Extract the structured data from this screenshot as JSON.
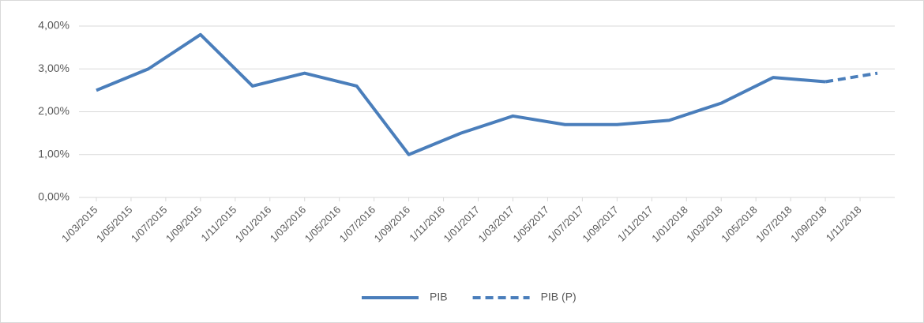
{
  "chart_data": {
    "type": "line",
    "x": [
      "1/03/2015",
      "1/06/2015",
      "1/09/2015",
      "1/12/2015",
      "1/03/2016",
      "1/06/2016",
      "1/09/2016",
      "1/12/2016",
      "1/03/2017",
      "1/06/2017",
      "1/09/2017",
      "1/12/2017",
      "1/03/2018",
      "1/06/2018",
      "1/09/2018",
      "1/12/2018"
    ],
    "series": [
      {
        "name": "PIB",
        "color": "#4a7ebb",
        "dash": false,
        "values": [
          2.5,
          3.0,
          3.8,
          2.6,
          2.9,
          2.6,
          1.0,
          1.5,
          1.9,
          1.7,
          1.7,
          1.8,
          2.2,
          2.8,
          2.7,
          null
        ]
      },
      {
        "name": "PIB (P)",
        "color": "#4a7ebb",
        "dash": true,
        "values": [
          null,
          null,
          null,
          null,
          null,
          null,
          null,
          null,
          null,
          null,
          null,
          null,
          null,
          null,
          2.7,
          2.9
        ]
      }
    ],
    "xlim": [
      "1/02/2015",
      "1/01/2019"
    ],
    "xticks": [
      "1/03/2015",
      "1/05/2015",
      "1/07/2015",
      "1/09/2015",
      "1/11/2015",
      "1/01/2016",
      "1/03/2016",
      "1/05/2016",
      "1/07/2016",
      "1/09/2016",
      "1/11/2016",
      "1/01/2017",
      "1/03/2017",
      "1/05/2017",
      "1/07/2017",
      "1/09/2017",
      "1/11/2017",
      "1/01/2018",
      "1/03/2018",
      "1/05/2018",
      "1/07/2018",
      "1/09/2018",
      "1/11/2018"
    ],
    "ylim": [
      0,
      4
    ],
    "yticks": [
      {
        "value": 0,
        "label": "0,00%"
      },
      {
        "value": 1,
        "label": "1,00%"
      },
      {
        "value": 2,
        "label": "2,00%"
      },
      {
        "value": 3,
        "label": "3,00%"
      },
      {
        "value": 4,
        "label": "4,00%"
      }
    ],
    "grid": true,
    "legend": "bottom"
  }
}
